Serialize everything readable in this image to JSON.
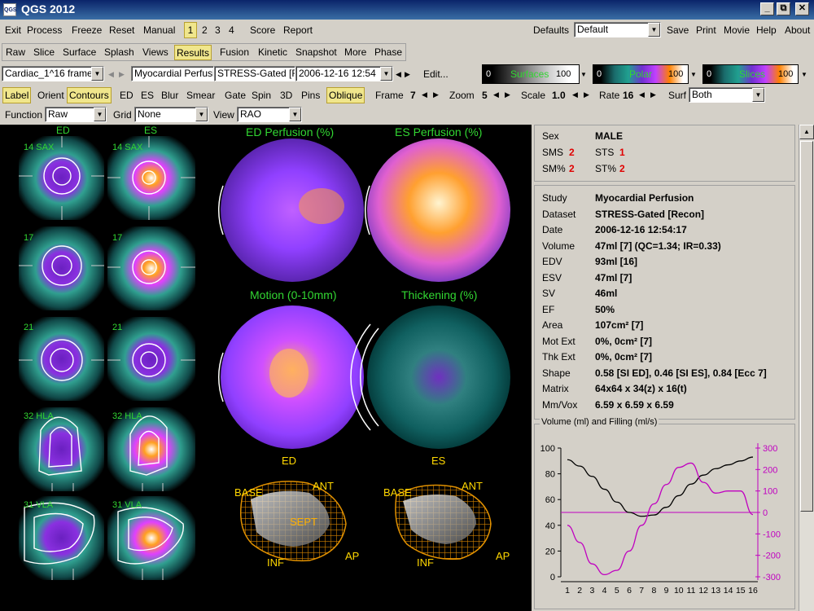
{
  "window": {
    "title": "QGS 2012",
    "logo": "QGS",
    "buttons": [
      "_",
      "⧉",
      "✕"
    ]
  },
  "menu": {
    "items": [
      "Exit",
      "Process",
      "Freeze",
      "Reset",
      "Manual"
    ],
    "pages": [
      "1",
      "2",
      "3",
      "4"
    ],
    "active_page": "1",
    "right_items": [
      "Score",
      "Report"
    ],
    "defaults_label": "Defaults",
    "defaults_value": "Default",
    "actions": [
      "Save",
      "Print",
      "Movie",
      "Help",
      "About"
    ]
  },
  "tabs": {
    "items": [
      "Raw",
      "Slice",
      "Surface",
      "Splash",
      "Views",
      "Results",
      "Fusion",
      "Kinetic",
      "Snapshot",
      "More",
      "Phase"
    ],
    "active": "Results"
  },
  "selectors": {
    "dataset": "Cardiac_1^16 frame",
    "study": "Myocardial Perfusi",
    "state": "STRESS-Gated [R",
    "datetime": "2006-12-16 12:54",
    "edit": "Edit..."
  },
  "colorbars": [
    {
      "name": "Surfaces",
      "min": "0",
      "max": "100"
    },
    {
      "name": "Polar",
      "min": "0",
      "max": "100"
    },
    {
      "name": "Slices",
      "min": "0",
      "max": "100"
    }
  ],
  "toggles": {
    "items": [
      "Label",
      "Orient",
      "Contours",
      "ED",
      "ES",
      "Blur",
      "Smear",
      "Gate",
      "Spin",
      "3D",
      "Pins",
      "Oblique"
    ],
    "active": [
      "Label",
      "Contours",
      "Oblique"
    ]
  },
  "params": [
    {
      "label": "Frame",
      "value": "7"
    },
    {
      "label": "Zoom",
      "value": "5"
    },
    {
      "label": "Scale",
      "value": "1.0"
    },
    {
      "label": "Rate",
      "value": "16"
    }
  ],
  "surf": {
    "label": "Surf",
    "value": "Both"
  },
  "row4": {
    "function_label": "Function",
    "function_value": "Raw",
    "grid_label": "Grid",
    "grid_value": "None",
    "view_label": "View",
    "view_value": "RAO"
  },
  "slices": {
    "header_ed": "ED",
    "header_es": "ES",
    "rows": [
      "14 SAX",
      "17",
      "21",
      "32 HLA",
      "31 VLA"
    ]
  },
  "polar": {
    "ed_perf": "ED Perfusion (%)",
    "es_perf": "ES Perfusion (%)",
    "motion": "Motion (0-10mm)",
    "thickening": "Thickening (%)",
    "ed": "ED",
    "es": "ES"
  },
  "wire": {
    "base": "BASE",
    "ant": "ANT",
    "sept": "SEPT",
    "inf": "INF",
    "ap": "AP"
  },
  "scores": {
    "sex_label": "Sex",
    "sex": "MALE",
    "sms_label": "SMS",
    "sms": "2",
    "sts_label": "STS",
    "sts": "1",
    "smp_label": "SM%",
    "smp": "2",
    "stp_label": "ST%",
    "stp": "2"
  },
  "study_info": [
    {
      "k": "Study",
      "v": "Myocardial Perfusion"
    },
    {
      "k": "Dataset",
      "v": "STRESS-Gated [Recon]"
    },
    {
      "k": "Date",
      "v": "2006-12-16 12:54:17"
    },
    {
      "k": "Volume",
      "v": "47ml [7] (QC=1.34; IR=0.33)"
    },
    {
      "k": "EDV",
      "v": "93ml [16]"
    },
    {
      "k": "ESV",
      "v": "47ml [7]"
    },
    {
      "k": "SV",
      "v": "46ml"
    },
    {
      "k": "EF",
      "v": "50%"
    },
    {
      "k": "Area",
      "v": "107cm² [7]"
    },
    {
      "k": "Mot Ext",
      "v": "0%, 0cm² [7]"
    },
    {
      "k": "Thk Ext",
      "v": "0%, 0cm² [7]"
    },
    {
      "k": "Shape",
      "v": "0.58 [SI ED],  0.46 [SI ES],  0.84 [Ecc 7]"
    },
    {
      "k": "Matrix",
      "v": "64x64 x 34(z) x 16(t)"
    },
    {
      "k": "Mm/Vox",
      "v": "6.59 x 6.59 x 6.59"
    }
  ],
  "chart_title": "Volume (ml) and Filling (ml/s)",
  "chart_data": {
    "type": "line",
    "title": "Volume (ml) and Filling (ml/s)",
    "x": [
      1,
      2,
      3,
      4,
      5,
      6,
      7,
      8,
      9,
      10,
      11,
      12,
      13,
      14,
      15,
      16
    ],
    "x_ticks": [
      "1",
      "2",
      "3",
      "4",
      "5",
      "6",
      "7",
      "8",
      "9",
      "10",
      "11",
      "12",
      "13",
      "14",
      "15",
      "16"
    ],
    "series": [
      {
        "name": "Volume (ml)",
        "axis": "left",
        "color": "#000000",
        "values": [
          91,
          86,
          78,
          68,
          58,
          50,
          47,
          48,
          54,
          63,
          72,
          79,
          84,
          87,
          90,
          93
        ]
      },
      {
        "name": "Filling (ml/s)",
        "axis": "right",
        "color": "#c000c0",
        "values": [
          -60,
          -140,
          -240,
          -290,
          -270,
          -180,
          -60,
          40,
          130,
          210,
          230,
          140,
          90,
          100,
          100,
          -10
        ]
      }
    ],
    "ylim_left": [
      0,
      100
    ],
    "yticks_left": [
      "0",
      "20",
      "40",
      "60",
      "80",
      "100"
    ],
    "ylim_right": [
      -300,
      300
    ],
    "yticks_right": [
      "-300",
      "-200",
      "-100",
      "0",
      "100",
      "200",
      "300"
    ],
    "zero_line": 0
  }
}
